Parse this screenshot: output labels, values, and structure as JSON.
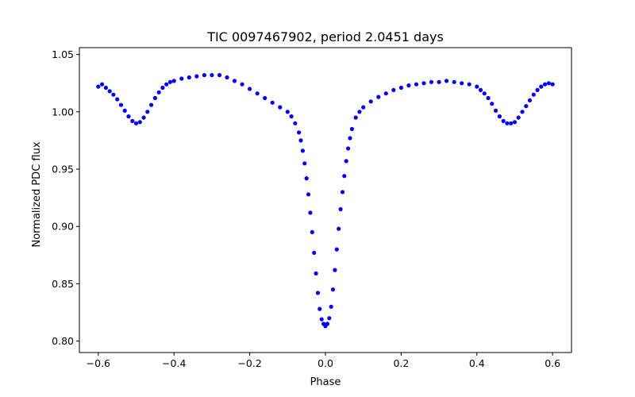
{
  "chart_data": {
    "type": "scatter",
    "title": "TIC 0097467902, period 2.0451 days",
    "xlabel": "Phase",
    "ylabel": "Normalized PDC flux",
    "xlim": [
      -0.65,
      0.65
    ],
    "ylim": [
      0.79,
      1.056
    ],
    "xticks": [
      -0.6,
      -0.4,
      -0.2,
      0.0,
      0.2,
      0.4,
      0.6
    ],
    "xtick_labels": [
      "−0.6",
      "−0.4",
      "−0.2",
      "0.0",
      "0.2",
      "0.4",
      "0.6"
    ],
    "yticks": [
      0.8,
      0.85,
      0.9,
      0.95,
      1.0,
      1.05
    ],
    "ytick_labels": [
      "0.80",
      "0.85",
      "0.90",
      "0.95",
      "1.00",
      "1.05"
    ],
    "grid": false,
    "marker_color": "#0000ff",
    "series": [
      {
        "x": [
          -0.6,
          -0.59,
          -0.58,
          -0.57,
          -0.56,
          -0.55,
          -0.54,
          -0.53,
          -0.52,
          -0.51,
          -0.5,
          -0.49,
          -0.48,
          -0.47,
          -0.46,
          -0.45,
          -0.44,
          -0.43,
          -0.42,
          -0.41,
          -0.4,
          -0.38,
          -0.36,
          -0.34,
          -0.32,
          -0.3,
          -0.28,
          -0.26,
          -0.24,
          -0.22,
          -0.2,
          -0.18,
          -0.16,
          -0.14,
          -0.12,
          -0.1,
          -0.09,
          -0.08,
          -0.07,
          -0.065,
          -0.06,
          -0.055,
          -0.05,
          -0.045,
          -0.04,
          -0.035,
          -0.03,
          -0.025,
          -0.02,
          -0.015,
          -0.01,
          -0.005,
          0.0,
          0.005,
          0.01,
          0.015,
          0.02,
          0.025,
          0.03,
          0.035,
          0.04,
          0.045,
          0.05,
          0.055,
          0.06,
          0.065,
          0.07,
          0.08,
          0.09,
          0.1,
          0.12,
          0.14,
          0.16,
          0.18,
          0.2,
          0.22,
          0.24,
          0.26,
          0.28,
          0.3,
          0.32,
          0.34,
          0.36,
          0.38,
          0.4,
          0.41,
          0.42,
          0.43,
          0.44,
          0.45,
          0.46,
          0.47,
          0.48,
          0.49,
          0.5,
          0.51,
          0.52,
          0.53,
          0.54,
          0.55,
          0.56,
          0.57,
          0.58,
          0.59,
          0.6
        ],
        "y": [
          1.022,
          1.024,
          1.021,
          1.018,
          1.015,
          1.011,
          1.006,
          1.001,
          0.996,
          0.992,
          0.99,
          0.991,
          0.995,
          1.0,
          1.006,
          1.012,
          1.017,
          1.021,
          1.024,
          1.026,
          1.027,
          1.029,
          1.03,
          1.031,
          1.032,
          1.032,
          1.032,
          1.03,
          1.027,
          1.024,
          1.02,
          1.016,
          1.012,
          1.008,
          1.004,
          1.0,
          0.996,
          0.99,
          0.982,
          0.975,
          0.966,
          0.955,
          0.942,
          0.928,
          0.912,
          0.895,
          0.877,
          0.859,
          0.842,
          0.828,
          0.819,
          0.815,
          0.813,
          0.815,
          0.82,
          0.83,
          0.845,
          0.862,
          0.88,
          0.898,
          0.915,
          0.93,
          0.944,
          0.957,
          0.968,
          0.977,
          0.985,
          0.995,
          1.0,
          1.004,
          1.009,
          1.013,
          1.016,
          1.019,
          1.021,
          1.023,
          1.024,
          1.025,
          1.026,
          1.026,
          1.027,
          1.026,
          1.025,
          1.024,
          1.022,
          1.019,
          1.016,
          1.012,
          1.007,
          1.001,
          0.996,
          0.992,
          0.99,
          0.99,
          0.991,
          0.995,
          1.0,
          1.005,
          1.01,
          1.015,
          1.019,
          1.022,
          1.024,
          1.025,
          1.024
        ]
      }
    ]
  }
}
